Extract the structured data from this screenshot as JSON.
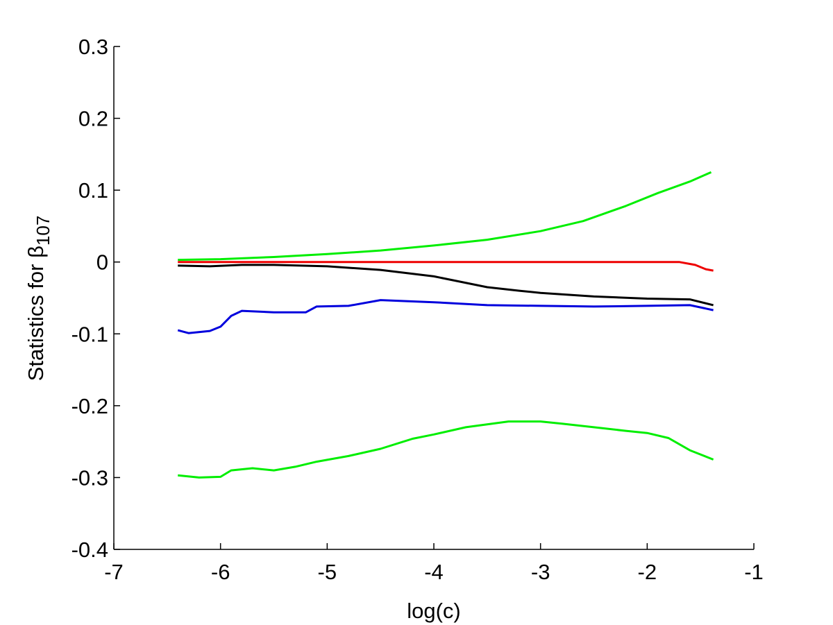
{
  "chart_data": {
    "type": "line",
    "xlabel": "log(c)",
    "ylabel": {
      "main": "Statistics for ",
      "symbol": "β",
      "subscript": "107"
    },
    "xlim": [
      -7,
      -1
    ],
    "ylim": [
      -0.4,
      0.3
    ],
    "xticks": [
      -7,
      -6,
      -5,
      -4,
      -3,
      -2,
      -1
    ],
    "yticks": [
      -0.4,
      -0.3,
      -0.2,
      -0.1,
      0,
      0.1,
      0.2,
      0.3
    ],
    "xtick_labels": [
      "-7",
      "-6",
      "-5",
      "-4",
      "-3",
      "-2",
      "-1"
    ],
    "ytick_labels": [
      "-0.4",
      "-0.3",
      "-0.2",
      "-0.1",
      "0",
      "0.1",
      "0.2",
      "0.3"
    ],
    "grid": false,
    "series": [
      {
        "color": "#00ee00",
        "x": [
          -6.4,
          -6.0,
          -5.5,
          -5.0,
          -4.5,
          -4.0,
          -3.5,
          -3.0,
          -2.6,
          -2.2,
          -1.9,
          -1.6,
          -1.4
        ],
        "y": [
          0.003,
          0.004,
          0.007,
          0.011,
          0.016,
          0.023,
          0.031,
          0.043,
          0.057,
          0.078,
          0.096,
          0.112,
          0.125
        ]
      },
      {
        "color": "#ee0000",
        "x": [
          -6.4,
          -5.0,
          -4.0,
          -3.0,
          -2.0,
          -1.7,
          -1.55,
          -1.45,
          -1.38
        ],
        "y": [
          0.0,
          0.0,
          0.0,
          0.0,
          0.0,
          0.0,
          -0.004,
          -0.01,
          -0.012
        ]
      },
      {
        "color": "#000000",
        "x": [
          -6.4,
          -6.1,
          -5.8,
          -5.5,
          -5.0,
          -4.5,
          -4.0,
          -3.8,
          -3.5,
          -3.2,
          -3.0,
          -2.5,
          -2.0,
          -1.6,
          -1.38
        ],
        "y": [
          -0.005,
          -0.006,
          -0.004,
          -0.004,
          -0.006,
          -0.011,
          -0.02,
          -0.026,
          -0.035,
          -0.04,
          -0.043,
          -0.048,
          -0.051,
          -0.052,
          -0.06
        ]
      },
      {
        "color": "#0000dd",
        "x": [
          -6.4,
          -6.3,
          -6.1,
          -6.0,
          -5.9,
          -5.8,
          -5.5,
          -5.2,
          -5.1,
          -4.8,
          -4.5,
          -4.0,
          -3.5,
          -3.0,
          -2.5,
          -2.0,
          -1.6,
          -1.38
        ],
        "y": [
          -0.095,
          -0.099,
          -0.096,
          -0.09,
          -0.075,
          -0.068,
          -0.07,
          -0.07,
          -0.062,
          -0.061,
          -0.053,
          -0.056,
          -0.06,
          -0.061,
          -0.062,
          -0.061,
          -0.06,
          -0.067
        ]
      },
      {
        "color": "#00ee00",
        "x": [
          -6.4,
          -6.2,
          -6.0,
          -5.9,
          -5.7,
          -5.5,
          -5.3,
          -5.1,
          -4.8,
          -4.5,
          -4.2,
          -4.0,
          -3.7,
          -3.3,
          -3.0,
          -2.8,
          -2.5,
          -2.2,
          -2.0,
          -1.8,
          -1.6,
          -1.38
        ],
        "y": [
          -0.297,
          -0.3,
          -0.299,
          -0.29,
          -0.287,
          -0.29,
          -0.285,
          -0.278,
          -0.27,
          -0.26,
          -0.246,
          -0.24,
          -0.23,
          -0.222,
          -0.222,
          -0.225,
          -0.23,
          -0.235,
          -0.238,
          -0.245,
          -0.262,
          -0.275
        ]
      }
    ]
  }
}
